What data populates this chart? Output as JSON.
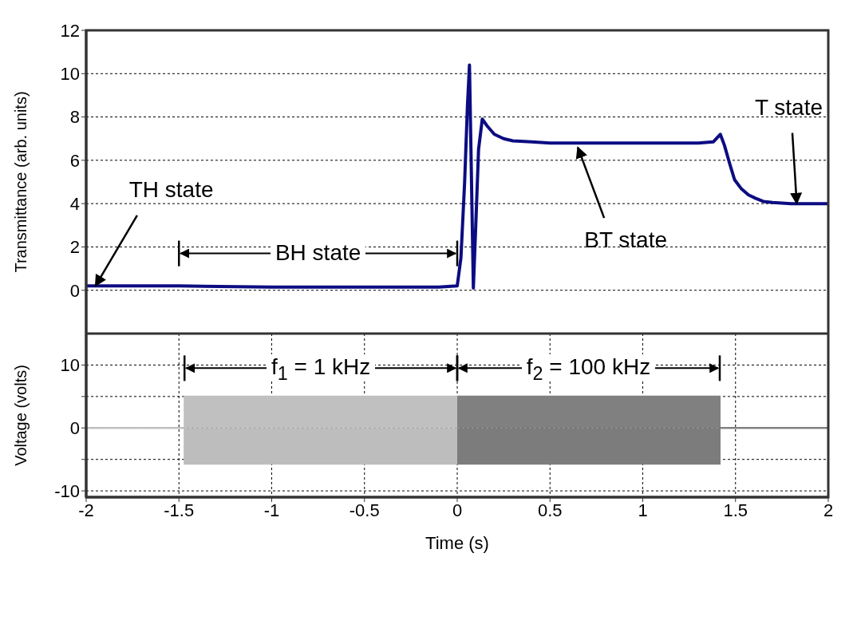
{
  "chart_data": [
    {
      "type": "line",
      "ylabel": "Transmittance (arb. units)",
      "xlim": [
        -2,
        2
      ],
      "xticks": [
        -2,
        -1.5,
        -1,
        -0.5,
        0,
        0.5,
        1,
        1.5,
        2
      ],
      "ylim": [
        -2,
        12
      ],
      "yticks": [
        0,
        2,
        4,
        6,
        8,
        10,
        12
      ],
      "grid": true,
      "tick_labels": "y",
      "series": [
        {
          "color": "#0c0c82",
          "x": [
            -2,
            -1.5,
            -1,
            -0.5,
            -0.1,
            0,
            0.02,
            0.04,
            0.055,
            0.066,
            0.075,
            0.087,
            0.1,
            0.115,
            0.135,
            0.16,
            0.2,
            0.25,
            0.3,
            0.4,
            0.5,
            0.7,
            0.9,
            1.1,
            1.3,
            1.38,
            1.418,
            1.44,
            1.47,
            1.495,
            1.53,
            1.57,
            1.607,
            1.65,
            1.7,
            1.8,
            1.9,
            2
          ],
          "values": [
            0.2,
            0.2,
            0.15,
            0.15,
            0.15,
            0.2,
            1.5,
            5,
            8.5,
            10.4,
            6,
            0.1,
            3,
            6.5,
            7.9,
            7.6,
            7.2,
            7.0,
            6.9,
            6.85,
            6.8,
            6.8,
            6.8,
            6.8,
            6.8,
            6.85,
            7.2,
            6.7,
            5.8,
            5.1,
            4.7,
            4.4,
            4.25,
            4.1,
            4.05,
            4.0,
            4.0,
            4.0
          ]
        }
      ],
      "annotations": [
        {
          "text": "TH state",
          "x": -1.95,
          "y": 0.2
        },
        "BH state",
        {
          "text": "BT state",
          "x": 0.65,
          "y": 6.6
        },
        {
          "text": "T state",
          "x": 1.83,
          "y": 4.0
        }
      ]
    },
    {
      "type": "area",
      "xlabel": "Time (s)",
      "ylabel": "Voltage (volts)",
      "xlim": [
        -2,
        2
      ],
      "xticks": [
        -2,
        -1.5,
        -1,
        -0.5,
        0,
        0.5,
        1,
        1.5,
        2
      ],
      "ylim": [
        -11,
        15
      ],
      "yticks": [
        -10,
        {
          "value": -5,
          "label": null
        },
        0,
        {
          "value": 5,
          "label": null
        },
        10
      ],
      "grid": true,
      "series": [
        {
          "color": "#c0c0c0",
          "x": [
            -2,
            -1.47,
            -1.47,
            0
          ],
          "values": [
            0,
            0,
            5,
            5
          ]
        },
        {
          "color": "#bdbdbd",
          "x": [
            -2,
            -1.47,
            -1.47,
            0
          ],
          "values": [
            0,
            0,
            -5.7,
            -5.7
          ]
        },
        {
          "color": "#808080",
          "x": [
            0,
            1.415,
            1.415,
            2
          ],
          "values": [
            5,
            5,
            0,
            0
          ]
        },
        {
          "color": "#7c7c7c",
          "x": [
            0,
            1.415,
            1.415,
            2
          ],
          "values": [
            -5.7,
            -5.7,
            0,
            0
          ]
        }
      ],
      "annotations": [
        "f$_{1}$ = 1 kHz",
        "f$_{2}$ = 100 kHz"
      ]
    }
  ]
}
